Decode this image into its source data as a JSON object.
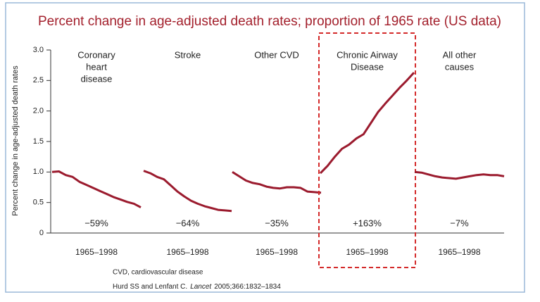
{
  "chart_data": {
    "type": "line",
    "title": "Percent change in age-adjusted death rates; proportion of 1965 rate (US data)",
    "y_label": "Percent change in age-adjusted death rates",
    "ylim": [
      0,
      3
    ],
    "yticks": [
      0,
      0.5,
      {
        "value": 1,
        "label": "1.0"
      },
      1.5,
      {
        "value": 2,
        "label": "2.0"
      },
      2.5,
      {
        "value": 3,
        "label": "3.0"
      }
    ],
    "color": "#9b1b2e",
    "panels": [
      {
        "name": [
          "Coronary",
          "heart",
          "disease"
        ],
        "change": "−59%",
        "x_label": "1965–1998",
        "highlight": false,
        "values": [
          1.0,
          1.01,
          0.95,
          0.92,
          0.84,
          0.79,
          0.74,
          0.69,
          0.64,
          0.59,
          0.55,
          0.51,
          0.48,
          0.42
        ]
      },
      {
        "name": [
          "Stroke"
        ],
        "change": "−64%",
        "x_label": "1965–1998",
        "highlight": false,
        "values": [
          1.02,
          0.98,
          0.92,
          0.88,
          0.78,
          0.68,
          0.6,
          0.53,
          0.48,
          0.44,
          0.41,
          0.38,
          0.37,
          0.36
        ]
      },
      {
        "name": [
          "Other CVD"
        ],
        "change": "−35%",
        "x_label": "1965–1998",
        "highlight": false,
        "values": [
          1.0,
          0.93,
          0.86,
          0.82,
          0.8,
          0.76,
          0.74,
          0.73,
          0.75,
          0.75,
          0.74,
          0.68,
          0.67,
          0.66
        ]
      },
      {
        "name": [
          "Chronic Airway",
          "Disease"
        ],
        "change": "+163%",
        "x_label": "1965–1998",
        "highlight": true,
        "values": [
          0.98,
          1.1,
          1.25,
          1.38,
          1.45,
          1.55,
          1.62,
          1.8,
          1.98,
          2.12,
          2.25,
          2.38,
          2.5,
          2.63
        ]
      },
      {
        "name": [
          "All other",
          "causes"
        ],
        "change": "−7%",
        "x_label": "1965–1998",
        "highlight": false,
        "values": [
          1.0,
          0.99,
          0.96,
          0.93,
          0.91,
          0.9,
          0.89,
          0.91,
          0.93,
          0.95,
          0.96,
          0.95,
          0.95,
          0.93
        ]
      }
    ],
    "footnotes": [
      "CVD, cardiovascular disease",
      [
        "Hurd SS and Lenfant C.",
        "Lancet",
        "2005;366:1832–1834"
      ]
    ]
  }
}
